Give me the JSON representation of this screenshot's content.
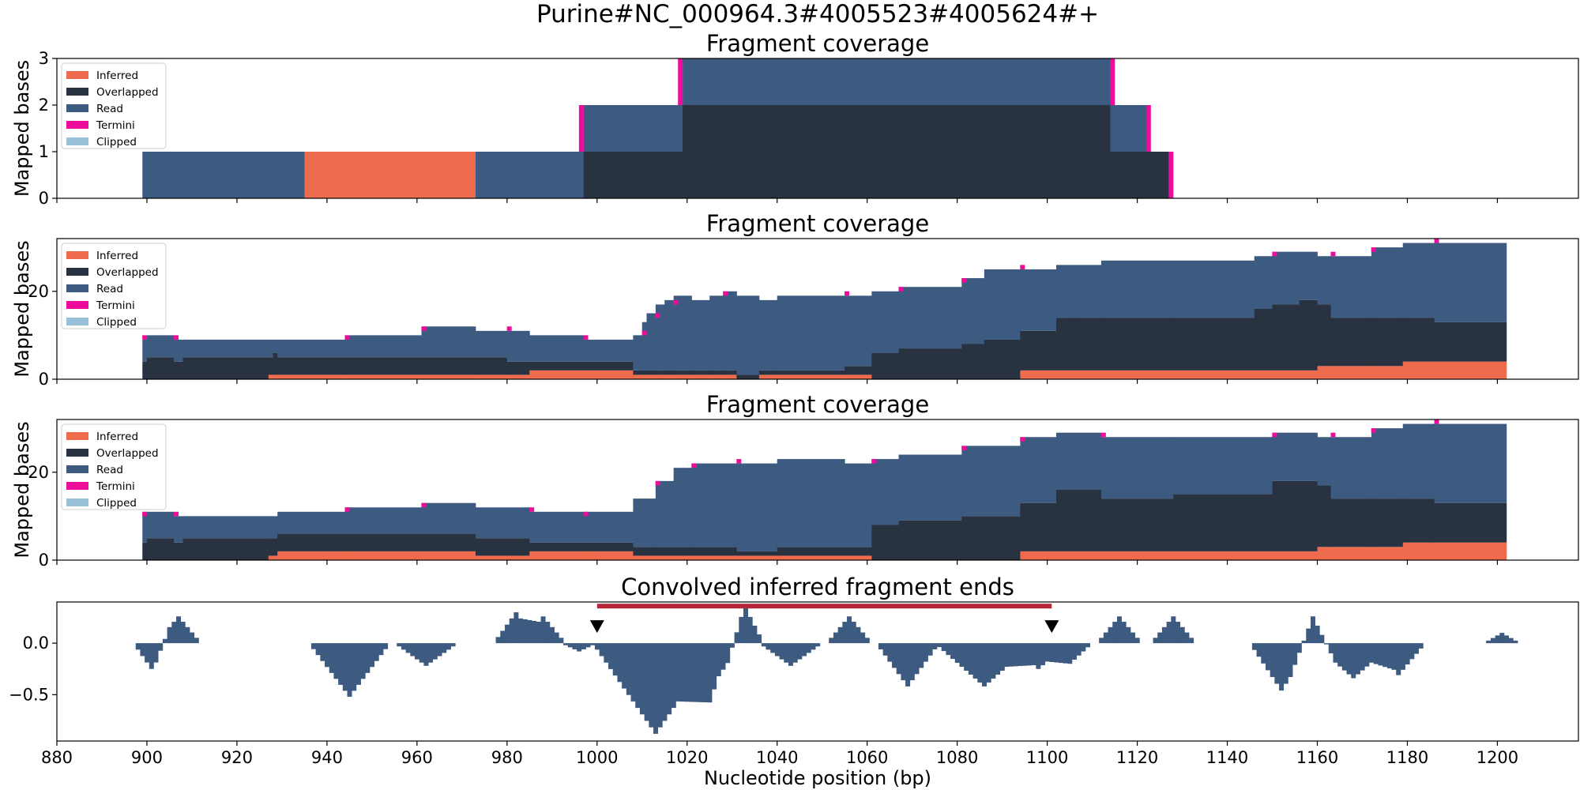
{
  "figure": {
    "title": "Purine#NC_000964.3#4005523#4005624#+"
  },
  "colors": {
    "Inferred": "#ee6c4d",
    "Overlapped": "#293241",
    "Read": "#3d5a80",
    "Termini": "#ee0d9b",
    "Clipped": "#98c1d9",
    "conv": "#3d5a80",
    "bar": "#b5263a",
    "marker": "#000000"
  },
  "chart_data": [
    {
      "type": "area",
      "title": "Fragment coverage",
      "ylabel": "Mapped bases",
      "xlim": [
        880,
        1218
      ],
      "ylim": [
        0,
        3
      ],
      "yticks": [
        0,
        1,
        2,
        3
      ],
      "legend": [
        "Inferred",
        "Overlapped",
        "Read",
        "Termini",
        "Clipped"
      ],
      "legend_placement": "upper-left",
      "segments": [
        {
          "x0": 899,
          "x1": 935,
          "inferred": 0,
          "overlapped": 0,
          "read": 1
        },
        {
          "x0": 935,
          "x1": 973,
          "inferred": 1,
          "overlapped": 0,
          "read": 0
        },
        {
          "x0": 973,
          "x1": 997,
          "inferred": 0,
          "overlapped": 0,
          "read": 1
        },
        {
          "x0": 997,
          "x1": 1019,
          "inferred": 0,
          "overlapped": 1,
          "read": 1
        },
        {
          "x0": 1019,
          "x1": 1114,
          "inferred": 0,
          "overlapped": 2,
          "read": 1
        },
        {
          "x0": 1114,
          "x1": 1122,
          "inferred": 0,
          "overlapped": 1,
          "read": 1
        },
        {
          "x0": 1122,
          "x1": 1127,
          "inferred": 0,
          "overlapped": 1,
          "read": 0
        }
      ],
      "termini": [
        {
          "x": 996.5,
          "y0": 1,
          "y1": 2
        },
        {
          "x": 1018.5,
          "y0": 2,
          "y1": 3
        },
        {
          "x": 1114.5,
          "y0": 2,
          "y1": 3
        },
        {
          "x": 1122.5,
          "y0": 1,
          "y1": 2
        },
        {
          "x": 1127.5,
          "y0": 0,
          "y1": 1
        }
      ]
    },
    {
      "type": "area",
      "title": "Fragment coverage",
      "ylabel": "Mapped bases",
      "xlim": [
        880,
        1218
      ],
      "ylim": [
        0,
        32
      ],
      "yticks": [
        0,
        20
      ],
      "legend": [
        "Inferred",
        "Overlapped",
        "Read",
        "Termini",
        "Clipped"
      ],
      "legend_placement": "upper-left",
      "segments": [
        {
          "x0": 899,
          "x1": 900,
          "inferred": 0,
          "overlapped": 4,
          "read": 5
        },
        {
          "x0": 900,
          "x1": 906,
          "inferred": 0,
          "overlapped": 5,
          "read": 5
        },
        {
          "x0": 906,
          "x1": 908,
          "inferred": 0,
          "overlapped": 4,
          "read": 5
        },
        {
          "x0": 908,
          "x1": 927,
          "inferred": 0,
          "overlapped": 5,
          "read": 4
        },
        {
          "x0": 927,
          "x1": 928,
          "inferred": 1,
          "overlapped": 4,
          "read": 4
        },
        {
          "x0": 928,
          "x1": 929,
          "inferred": 1,
          "overlapped": 5,
          "read": 3
        },
        {
          "x0": 929,
          "x1": 944,
          "inferred": 1,
          "overlapped": 4,
          "read": 4
        },
        {
          "x0": 944,
          "x1": 961,
          "inferred": 1,
          "overlapped": 4,
          "read": 5
        },
        {
          "x0": 961,
          "x1": 973,
          "inferred": 1,
          "overlapped": 4,
          "read": 7
        },
        {
          "x0": 973,
          "x1": 980,
          "inferred": 1,
          "overlapped": 4,
          "read": 6
        },
        {
          "x0": 980,
          "x1": 985,
          "inferred": 1,
          "overlapped": 3,
          "read": 7
        },
        {
          "x0": 985,
          "x1": 997,
          "inferred": 2,
          "overlapped": 2,
          "read": 6
        },
        {
          "x0": 997,
          "x1": 1008,
          "inferred": 2,
          "overlapped": 2,
          "read": 5
        },
        {
          "x0": 1008,
          "x1": 1010,
          "inferred": 1,
          "overlapped": 1,
          "read": 8
        },
        {
          "x0": 1010,
          "x1": 1011,
          "inferred": 1,
          "overlapped": 1,
          "read": 11
        },
        {
          "x0": 1011,
          "x1": 1013,
          "inferred": 1,
          "overlapped": 1,
          "read": 13
        },
        {
          "x0": 1013,
          "x1": 1015,
          "inferred": 1,
          "overlapped": 1,
          "read": 15
        },
        {
          "x0": 1015,
          "x1": 1017,
          "inferred": 1,
          "overlapped": 1,
          "read": 16
        },
        {
          "x0": 1017,
          "x1": 1021,
          "inferred": 1,
          "overlapped": 1,
          "read": 17
        },
        {
          "x0": 1021,
          "x1": 1025,
          "inferred": 1,
          "overlapped": 1,
          "read": 16
        },
        {
          "x0": 1025,
          "x1": 1028,
          "inferred": 1,
          "overlapped": 1,
          "read": 17
        },
        {
          "x0": 1028,
          "x1": 1031,
          "inferred": 1,
          "overlapped": 1,
          "read": 18
        },
        {
          "x0": 1031,
          "x1": 1036,
          "inferred": 0,
          "overlapped": 1,
          "read": 18
        },
        {
          "x0": 1036,
          "x1": 1040,
          "inferred": 1,
          "overlapped": 1,
          "read": 16
        },
        {
          "x0": 1040,
          "x1": 1055,
          "inferred": 1,
          "overlapped": 1,
          "read": 17
        },
        {
          "x0": 1055,
          "x1": 1061,
          "inferred": 1,
          "overlapped": 2,
          "read": 16
        },
        {
          "x0": 1061,
          "x1": 1067,
          "inferred": 0,
          "overlapped": 6,
          "read": 14
        },
        {
          "x0": 1067,
          "x1": 1081,
          "inferred": 0,
          "overlapped": 7,
          "read": 14
        },
        {
          "x0": 1081,
          "x1": 1086,
          "inferred": 0,
          "overlapped": 8,
          "read": 15
        },
        {
          "x0": 1086,
          "x1": 1094,
          "inferred": 0,
          "overlapped": 9,
          "read": 16
        },
        {
          "x0": 1094,
          "x1": 1102,
          "inferred": 2,
          "overlapped": 9,
          "read": 14
        },
        {
          "x0": 1102,
          "x1": 1106,
          "inferred": 2,
          "overlapped": 12,
          "read": 12
        },
        {
          "x0": 1106,
          "x1": 1112,
          "inferred": 2,
          "overlapped": 12,
          "read": 12
        },
        {
          "x0": 1112,
          "x1": 1128,
          "inferred": 2,
          "overlapped": 12,
          "read": 13
        },
        {
          "x0": 1128,
          "x1": 1146,
          "inferred": 2,
          "overlapped": 12,
          "read": 13
        },
        {
          "x0": 1146,
          "x1": 1150,
          "inferred": 2,
          "overlapped": 14,
          "read": 12
        },
        {
          "x0": 1150,
          "x1": 1156,
          "inferred": 2,
          "overlapped": 15,
          "read": 12
        },
        {
          "x0": 1156,
          "x1": 1160,
          "inferred": 2,
          "overlapped": 16,
          "read": 11
        },
        {
          "x0": 1160,
          "x1": 1163,
          "inferred": 3,
          "overlapped": 14,
          "read": 11
        },
        {
          "x0": 1163,
          "x1": 1172,
          "inferred": 3,
          "overlapped": 11,
          "read": 14
        },
        {
          "x0": 1172,
          "x1": 1179,
          "inferred": 3,
          "overlapped": 11,
          "read": 16
        },
        {
          "x0": 1179,
          "x1": 1186,
          "inferred": 4,
          "overlapped": 10,
          "read": 17
        },
        {
          "x0": 1186,
          "x1": 1202,
          "inferred": 4,
          "overlapped": 9,
          "read": 18
        }
      ],
      "termini": [
        {
          "x": 899.5,
          "y0": 9,
          "y1": 10
        },
        {
          "x": 906.5,
          "y0": 9,
          "y1": 10
        },
        {
          "x": 944.5,
          "y0": 9,
          "y1": 10
        },
        {
          "x": 961.5,
          "y0": 11,
          "y1": 12
        },
        {
          "x": 980.5,
          "y0": 11,
          "y1": 12
        },
        {
          "x": 997.5,
          "y0": 9,
          "y1": 10
        },
        {
          "x": 1010.5,
          "y0": 10,
          "y1": 11
        },
        {
          "x": 1013.5,
          "y0": 14,
          "y1": 15
        },
        {
          "x": 1017.5,
          "y0": 17,
          "y1": 18
        },
        {
          "x": 1028.5,
          "y0": 19,
          "y1": 20
        },
        {
          "x": 1055.5,
          "y0": 19,
          "y1": 20
        },
        {
          "x": 1067.5,
          "y0": 20,
          "y1": 21
        },
        {
          "x": 1081.5,
          "y0": 22,
          "y1": 23
        },
        {
          "x": 1094.5,
          "y0": 25,
          "y1": 26
        },
        {
          "x": 1150.5,
          "y0": 28,
          "y1": 29
        },
        {
          "x": 1163.5,
          "y0": 28,
          "y1": 29
        },
        {
          "x": 1172.5,
          "y0": 29,
          "y1": 30
        },
        {
          "x": 1186.5,
          "y0": 31,
          "y1": 32
        }
      ]
    },
    {
      "type": "area",
      "title": "Fragment coverage",
      "ylabel": "Mapped bases",
      "xlim": [
        880,
        1218
      ],
      "ylim": [
        0,
        32
      ],
      "yticks": [
        0,
        20
      ],
      "legend": [
        "Inferred",
        "Overlapped",
        "Read",
        "Termini",
        "Clipped"
      ],
      "legend_placement": "upper-left",
      "segments": [
        {
          "x0": 899,
          "x1": 900,
          "inferred": 0,
          "overlapped": 4,
          "read": 7
        },
        {
          "x0": 900,
          "x1": 906,
          "inferred": 0,
          "overlapped": 5,
          "read": 6
        },
        {
          "x0": 906,
          "x1": 908,
          "inferred": 0,
          "overlapped": 4,
          "read": 6
        },
        {
          "x0": 908,
          "x1": 927,
          "inferred": 0,
          "overlapped": 5,
          "read": 5
        },
        {
          "x0": 927,
          "x1": 929,
          "inferred": 1,
          "overlapped": 4,
          "read": 5
        },
        {
          "x0": 929,
          "x1": 944,
          "inferred": 2,
          "overlapped": 4,
          "read": 5
        },
        {
          "x0": 944,
          "x1": 961,
          "inferred": 2,
          "overlapped": 4,
          "read": 6
        },
        {
          "x0": 961,
          "x1": 973,
          "inferred": 2,
          "overlapped": 4,
          "read": 7
        },
        {
          "x0": 973,
          "x1": 985,
          "inferred": 1,
          "overlapped": 4,
          "read": 7
        },
        {
          "x0": 985,
          "x1": 997,
          "inferred": 2,
          "overlapped": 2,
          "read": 7
        },
        {
          "x0": 997,
          "x1": 1008,
          "inferred": 2,
          "overlapped": 2,
          "read": 7
        },
        {
          "x0": 1008,
          "x1": 1013,
          "inferred": 1,
          "overlapped": 2,
          "read": 11
        },
        {
          "x0": 1013,
          "x1": 1017,
          "inferred": 1,
          "overlapped": 2,
          "read": 15
        },
        {
          "x0": 1017,
          "x1": 1021,
          "inferred": 1,
          "overlapped": 2,
          "read": 18
        },
        {
          "x0": 1021,
          "x1": 1031,
          "inferred": 1,
          "overlapped": 2,
          "read": 19
        },
        {
          "x0": 1031,
          "x1": 1040,
          "inferred": 1,
          "overlapped": 1,
          "read": 20
        },
        {
          "x0": 1040,
          "x1": 1055,
          "inferred": 1,
          "overlapped": 2,
          "read": 20
        },
        {
          "x0": 1055,
          "x1": 1061,
          "inferred": 1,
          "overlapped": 2,
          "read": 19
        },
        {
          "x0": 1061,
          "x1": 1067,
          "inferred": 0,
          "overlapped": 8,
          "read": 15
        },
        {
          "x0": 1067,
          "x1": 1081,
          "inferred": 0,
          "overlapped": 9,
          "read": 15
        },
        {
          "x0": 1081,
          "x1": 1094,
          "inferred": 0,
          "overlapped": 10,
          "read": 16
        },
        {
          "x0": 1094,
          "x1": 1102,
          "inferred": 2,
          "overlapped": 11,
          "read": 15
        },
        {
          "x0": 1102,
          "x1": 1112,
          "inferred": 2,
          "overlapped": 14,
          "read": 13
        },
        {
          "x0": 1112,
          "x1": 1128,
          "inferred": 2,
          "overlapped": 12,
          "read": 14
        },
        {
          "x0": 1128,
          "x1": 1150,
          "inferred": 2,
          "overlapped": 13,
          "read": 13
        },
        {
          "x0": 1150,
          "x1": 1160,
          "inferred": 2,
          "overlapped": 16,
          "read": 11
        },
        {
          "x0": 1160,
          "x1": 1163,
          "inferred": 3,
          "overlapped": 14,
          "read": 11
        },
        {
          "x0": 1163,
          "x1": 1172,
          "inferred": 3,
          "overlapped": 11,
          "read": 14
        },
        {
          "x0": 1172,
          "x1": 1179,
          "inferred": 3,
          "overlapped": 11,
          "read": 16
        },
        {
          "x0": 1179,
          "x1": 1186,
          "inferred": 4,
          "overlapped": 10,
          "read": 17
        },
        {
          "x0": 1186,
          "x1": 1202,
          "inferred": 4,
          "overlapped": 9,
          "read": 18
        }
      ],
      "termini": [
        {
          "x": 899.5,
          "y0": 10,
          "y1": 11
        },
        {
          "x": 906.5,
          "y0": 10,
          "y1": 11
        },
        {
          "x": 944.5,
          "y0": 11,
          "y1": 12
        },
        {
          "x": 961.5,
          "y0": 12,
          "y1": 13
        },
        {
          "x": 985.5,
          "y0": 11,
          "y1": 12
        },
        {
          "x": 997.5,
          "y0": 10,
          "y1": 11
        },
        {
          "x": 1013.5,
          "y0": 17,
          "y1": 18
        },
        {
          "x": 1021.5,
          "y0": 21,
          "y1": 22
        },
        {
          "x": 1031.5,
          "y0": 22,
          "y1": 23
        },
        {
          "x": 1061.5,
          "y0": 22,
          "y1": 23
        },
        {
          "x": 1081.5,
          "y0": 25,
          "y1": 26
        },
        {
          "x": 1094.5,
          "y0": 27,
          "y1": 28
        },
        {
          "x": 1112.5,
          "y0": 28,
          "y1": 29
        },
        {
          "x": 1150.5,
          "y0": 28,
          "y1": 29
        },
        {
          "x": 1163.5,
          "y0": 28,
          "y1": 29
        },
        {
          "x": 1172.5,
          "y0": 29,
          "y1": 30
        },
        {
          "x": 1186.5,
          "y0": 31,
          "y1": 32
        }
      ]
    },
    {
      "type": "bar",
      "title": "Convolved inferred fragment ends",
      "xlabel": "Nucleotide position (bp)",
      "xlim": [
        880,
        1218
      ],
      "ylim": [
        -0.95,
        0.4
      ],
      "yticks": [
        0.0,
        -0.5
      ],
      "ytick_labels": [
        "0.0",
        "−0.5"
      ],
      "xticks": [
        880,
        900,
        920,
        940,
        960,
        980,
        1000,
        1020,
        1040,
        1060,
        1080,
        1100,
        1120,
        1140,
        1160,
        1180,
        1200
      ],
      "bumps": [
        {
          "center": 900.5,
          "half_width": 3,
          "peak": -0.25
        },
        {
          "center": 907,
          "half_width": 4,
          "peak": 0.26
        },
        {
          "center": 945,
          "half_width": 8,
          "peak": -0.52
        },
        {
          "center": 962,
          "half_width": 6,
          "peak": -0.22
        },
        {
          "center": 981.5,
          "half_width": 4,
          "peak": 0.3
        },
        {
          "center": 987.5,
          "half_width": 4,
          "peak": 0.26
        },
        {
          "center": 996,
          "half_width": 3,
          "peak": -0.08
        },
        {
          "center": 1013,
          "half_width": 13,
          "peak": -0.88
        },
        {
          "center": 1025,
          "half_width": 6,
          "peak": -0.45
        },
        {
          "center": 1033,
          "half_width": 3,
          "peak": 0.34
        },
        {
          "center": 1043,
          "half_width": 6,
          "peak": -0.22
        },
        {
          "center": 1056,
          "half_width": 4,
          "peak": 0.26
        },
        {
          "center": 1069,
          "half_width": 6,
          "peak": -0.42
        },
        {
          "center": 1086,
          "half_width": 10,
          "peak": -0.42
        },
        {
          "center": 1098,
          "half_width": 6,
          "peak": -0.25
        },
        {
          "center": 1105,
          "half_width": 4,
          "peak": -0.2
        },
        {
          "center": 1116,
          "half_width": 4,
          "peak": 0.26
        },
        {
          "center": 1128,
          "half_width": 4,
          "peak": 0.26
        },
        {
          "center": 1152,
          "half_width": 6,
          "peak": -0.46
        },
        {
          "center": 1159,
          "half_width": 4,
          "peak": 0.26
        },
        {
          "center": 1168,
          "half_width": 8,
          "peak": -0.34
        },
        {
          "center": 1178,
          "half_width": 5,
          "peak": -0.31
        },
        {
          "center": 1201,
          "half_width": 3,
          "peak": 0.1
        }
      ],
      "interval": {
        "x0": 1000,
        "x1": 1101,
        "y": 0.36
      },
      "markers": [
        {
          "x": 1000,
          "y": 0.1
        },
        {
          "x": 1101,
          "y": 0.1
        }
      ]
    }
  ]
}
